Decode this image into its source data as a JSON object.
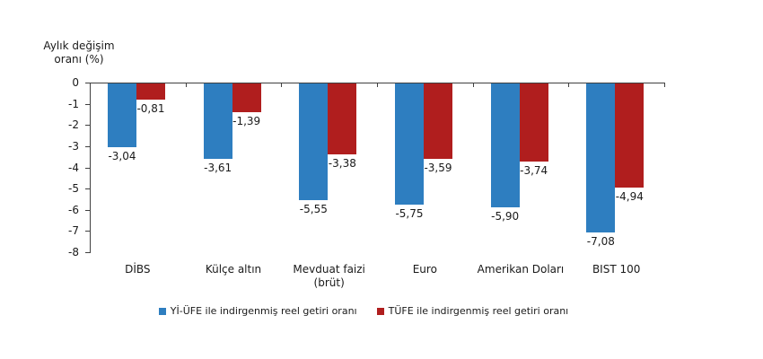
{
  "chart_data": {
    "type": "bar",
    "title": "Aylık değişim\noranı (%)",
    "categories": [
      "DİBS",
      "Külçe altın",
      "Mevduat faizi\n(brüt)",
      "Euro",
      "Amerikan Doları",
      "BIST 100"
    ],
    "series": [
      {
        "name": "Yİ-ÜFE ile indirgenmiş reel getiri oranı",
        "color": "#2E7EC0",
        "values": [
          -3.04,
          -3.61,
          -5.55,
          -5.75,
          -5.9,
          -7.08
        ],
        "labels": [
          "-3,04",
          "-3,61",
          "-5,55",
          "-5,75",
          "-5,90",
          "-7,08"
        ]
      },
      {
        "name": "TÜFE ile indirgenmiş reel getiri oranı",
        "color": "#B01E1E",
        "values": [
          -0.81,
          -1.39,
          -3.38,
          -3.59,
          -3.74,
          -4.94
        ],
        "labels": [
          "-0,81",
          "-1,39",
          "-3,38",
          "-3,59",
          "-3,74",
          "-4,94"
        ]
      }
    ],
    "ylim": [
      -8,
      0
    ],
    "yticks": [
      0,
      -1,
      -2,
      -3,
      -4,
      -5,
      -6,
      -7,
      -8
    ],
    "xlabel": "",
    "ylabel": "Aylık değişim oranı (%)",
    "grid": false,
    "legend_position": "bottom"
  }
}
